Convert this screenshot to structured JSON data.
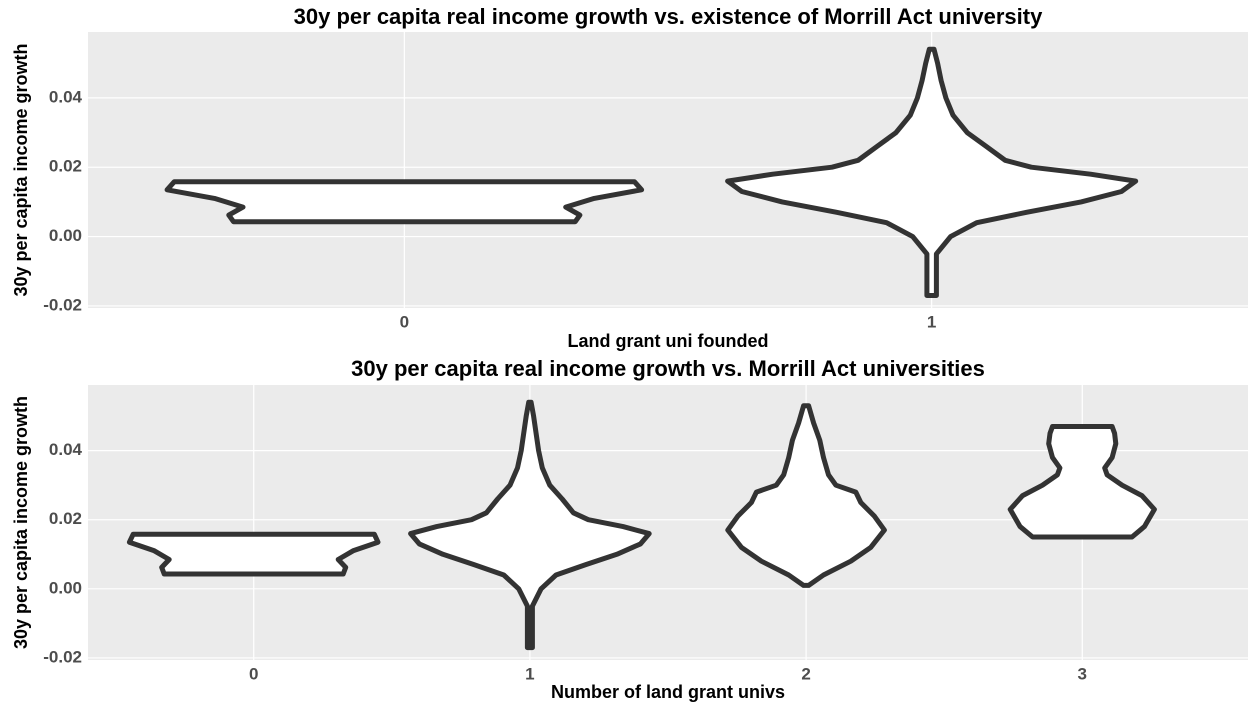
{
  "chart_data": [
    {
      "type": "violin",
      "title": "30y per capita real income growth vs. existence of Morrill Act university",
      "x_label": "Land grant uni founded",
      "y_label": "30y per capita income growth",
      "categories": [
        "0",
        "1"
      ],
      "violins": [
        {
          "y": [
            0.0043,
            0.0062,
            0.0085,
            0.011,
            0.0135,
            0.0158
          ],
          "width": [
            0.72,
            0.74,
            0.68,
            0.8,
            1.0,
            0.97
          ]
        },
        {
          "y": [
            -0.017,
            -0.005,
            0.0,
            0.004,
            0.007,
            0.01,
            0.013,
            0.016,
            0.018,
            0.02,
            0.022,
            0.026,
            0.03,
            0.035,
            0.04,
            0.045,
            0.05,
            0.054
          ],
          "width": [
            0.02,
            0.02,
            0.08,
            0.19,
            0.4,
            0.63,
            0.8,
            0.86,
            0.67,
            0.42,
            0.31,
            0.23,
            0.15,
            0.09,
            0.06,
            0.04,
            0.025,
            0.01
          ]
        }
      ],
      "color": "#333333",
      "fill": "#ffffff",
      "ylim": [
        -0.0206,
        0.059
      ],
      "yticks": [
        -0.02,
        {
          "value": 0,
          "label": "0.00"
        },
        0.02,
        0.04
      ],
      "grid": true
    },
    {
      "type": "violin",
      "title": "30y per capita real income growth vs. Morrill Act universities",
      "x_label": "Number of land grant univs",
      "y_label": "30y per capita income growth",
      "categories": [
        "0",
        "1",
        "2",
        "3"
      ],
      "violins": [
        {
          "y": [
            0.0043,
            0.0062,
            0.0085,
            0.011,
            0.0135,
            0.0158
          ],
          "width": [
            0.72,
            0.74,
            0.68,
            0.8,
            1.0,
            0.97
          ]
        },
        {
          "y": [
            -0.017,
            -0.005,
            0.0,
            0.004,
            0.007,
            0.01,
            0.013,
            0.016,
            0.018,
            0.02,
            0.022,
            0.026,
            0.03,
            0.035,
            0.04,
            0.045,
            0.05,
            0.054
          ],
          "width": [
            0.02,
            0.02,
            0.09,
            0.21,
            0.45,
            0.7,
            0.89,
            0.96,
            0.75,
            0.47,
            0.35,
            0.26,
            0.16,
            0.1,
            0.07,
            0.05,
            0.03,
            0.01
          ]
        },
        {
          "y": [
            0.001,
            0.004,
            0.008,
            0.012,
            0.017,
            0.021,
            0.025,
            0.028,
            0.03,
            0.033,
            0.038,
            0.043,
            0.048,
            0.053
          ],
          "width": [
            0.02,
            0.14,
            0.36,
            0.52,
            0.63,
            0.55,
            0.44,
            0.4,
            0.24,
            0.18,
            0.14,
            0.11,
            0.06,
            0.02
          ]
        },
        {
          "y": [
            0.015,
            0.018,
            0.023,
            0.027,
            0.03,
            0.033,
            0.035,
            0.038,
            0.042,
            0.045,
            0.047
          ],
          "width": [
            0.4,
            0.5,
            0.58,
            0.48,
            0.32,
            0.2,
            0.18,
            0.24,
            0.27,
            0.26,
            0.24
          ]
        }
      ],
      "color": "#333333",
      "fill": "#ffffff",
      "ylim": [
        -0.0206,
        0.059
      ],
      "yticks": [
        -0.02,
        {
          "value": 0,
          "label": "0.00"
        },
        0.02,
        0.04
      ],
      "grid": true
    }
  ]
}
